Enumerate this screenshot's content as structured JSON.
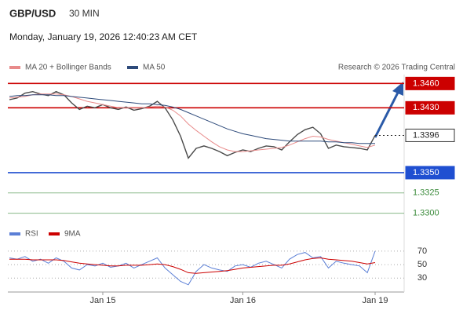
{
  "header": {
    "symbol": "GBP/USD",
    "timeframe": "30 MIN",
    "datetime": "Monday, January 19, 2026 12:40:23 AM CET",
    "attribution": "Research © 2026 Trading Central"
  },
  "chart_data": [
    {
      "type": "line",
      "categories": [
        null,
        null,
        null,
        null,
        null,
        null,
        null,
        null,
        null,
        null,
        null,
        null,
        "Jan 15",
        null,
        null,
        null,
        null,
        null,
        null,
        null,
        null,
        null,
        null,
        null,
        null,
        null,
        null,
        null,
        null,
        null,
        "Jan 16",
        null,
        null,
        null,
        null,
        null,
        null,
        null,
        null,
        null,
        null,
        null,
        null,
        null,
        null,
        null,
        null,
        "Jan 19"
      ],
      "ylim": [
        1.3287,
        1.3471
      ],
      "series": [
        {
          "color": "#4a4a4a",
          "values": [
            1.344,
            1.3442,
            1.3448,
            1.345,
            1.3447,
            1.3445,
            1.345,
            1.3446,
            1.3436,
            1.3428,
            1.3432,
            1.343,
            1.3434,
            1.343,
            1.3428,
            1.3431,
            1.3427,
            1.3429,
            1.3432,
            1.3438,
            1.343,
            1.3415,
            1.3395,
            1.3368,
            1.338,
            1.3383,
            1.338,
            1.3376,
            1.3371,
            1.3375,
            1.3378,
            1.3376,
            1.338,
            1.3383,
            1.3382,
            1.3378,
            1.3388,
            1.3397,
            1.3403,
            1.3406,
            1.3398,
            1.338,
            1.3384,
            1.3382,
            1.3381,
            1.338,
            1.3378,
            1.3396
          ]
        },
        {
          "name": "MA 20 + Bollinger Bands",
          "color": "#e88a8a",
          "values": [
            1.3442,
            1.3443,
            1.3444,
            1.3446,
            1.3447,
            1.3447,
            1.3447,
            1.3446,
            1.3444,
            1.3441,
            1.3438,
            1.3436,
            1.3434,
            1.3432,
            1.343,
            1.343,
            1.343,
            1.343,
            1.3431,
            1.3432,
            1.3431,
            1.3427,
            1.342,
            1.341,
            1.3402,
            1.3395,
            1.3388,
            1.3382,
            1.3378,
            1.3376,
            1.3376,
            1.3377,
            1.3378,
            1.3379,
            1.338,
            1.3381,
            1.3384,
            1.3388,
            1.3392,
            1.3395,
            1.3394,
            1.3391,
            1.3389,
            1.3387,
            1.3385,
            1.3383,
            1.3381,
            1.3384
          ]
        },
        {
          "name": "MA 50",
          "color": "#2d4a7a",
          "values": [
            1.3444,
            1.3445,
            1.3445,
            1.3446,
            1.3446,
            1.3446,
            1.3445,
            1.3445,
            1.3444,
            1.3443,
            1.3442,
            1.3441,
            1.344,
            1.3439,
            1.3438,
            1.3437,
            1.3436,
            1.3435,
            1.3435,
            1.3434,
            1.3433,
            1.3431,
            1.3428,
            1.3424,
            1.342,
            1.3416,
            1.3412,
            1.3408,
            1.3404,
            1.3401,
            1.3398,
            1.3396,
            1.3394,
            1.3392,
            1.3391,
            1.339,
            1.3389,
            1.3389,
            1.3389,
            1.3389,
            1.3389,
            1.3388,
            1.3388,
            1.3387,
            1.3387,
            1.3386,
            1.3386,
            1.3386
          ]
        }
      ],
      "levels": [
        {
          "value": 1.346,
          "label": "1.3460",
          "color": "#cc0000"
        },
        {
          "value": 1.343,
          "label": "1.3430",
          "color": "#cc0000"
        },
        {
          "value": 1.3396,
          "label": "1.3396",
          "color": "#222222",
          "style": "dotted"
        },
        {
          "value": 1.335,
          "label": "1.3350",
          "color": "#1f4fd1"
        },
        {
          "value": 1.3325,
          "label": "1.3325",
          "color": "#3a8a3a"
        },
        {
          "value": 1.33,
          "label": "1.3300",
          "color": "#3a8a3a"
        }
      ]
    },
    {
      "type": "line",
      "ylim": [
        14,
        78
      ],
      "yticks": [
        70,
        50,
        30
      ],
      "series": [
        {
          "name": "RSI",
          "color": "#5b7fd6",
          "values": [
            60,
            58,
            62,
            55,
            58,
            52,
            60,
            55,
            45,
            42,
            50,
            48,
            52,
            46,
            48,
            52,
            45,
            50,
            55,
            60,
            45,
            35,
            25,
            20,
            40,
            50,
            45,
            42,
            40,
            48,
            50,
            46,
            52,
            55,
            50,
            45,
            58,
            65,
            68,
            60,
            62,
            45,
            55,
            52,
            50,
            48,
            38,
            70
          ]
        },
        {
          "name": "9MA",
          "color": "#cc0000",
          "values": [
            58,
            58,
            58,
            57,
            57,
            57,
            57,
            56,
            54,
            52,
            51,
            50,
            49,
            48,
            48,
            49,
            49,
            49,
            50,
            51,
            50,
            47,
            43,
            38,
            37,
            38,
            39,
            40,
            41,
            43,
            45,
            46,
            47,
            48,
            49,
            49,
            51,
            54,
            57,
            59,
            60,
            58,
            57,
            56,
            55,
            53,
            51,
            53
          ]
        }
      ]
    }
  ]
}
